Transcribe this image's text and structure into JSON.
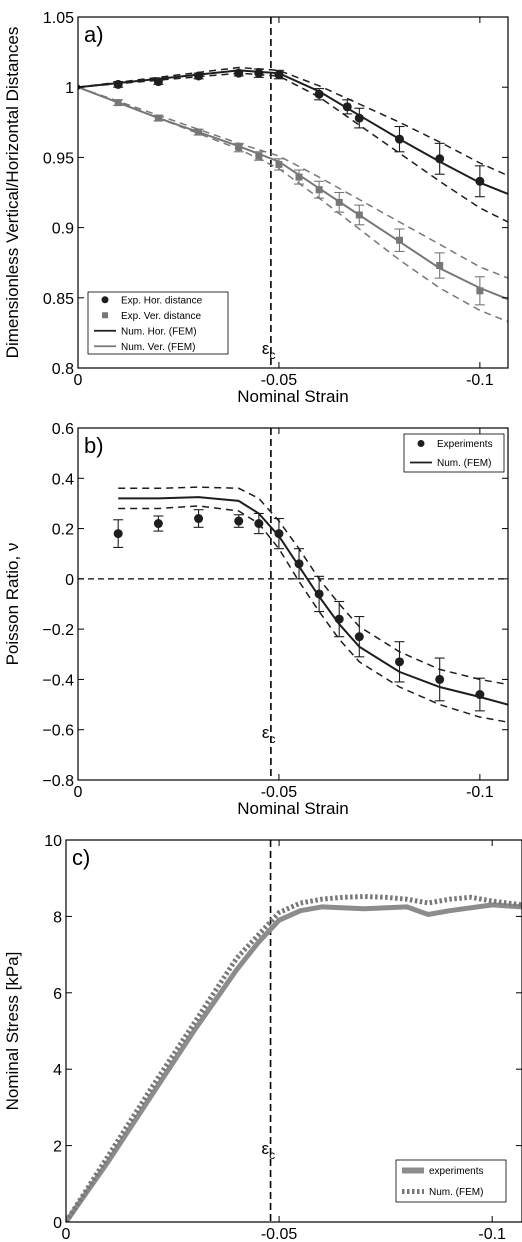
{
  "chart_data": [
    {
      "type": "line",
      "panel_label": "a)",
      "xlabel": "Nominal Strain",
      "ylabel": "Dimensionless Vertical/Horizontal Distances",
      "xlim": [
        0,
        -0.107
      ],
      "ylim": [
        0.8,
        1.05
      ],
      "xticks": [
        0,
        -0.05,
        -0.1
      ],
      "xtick_labels": [
        "0",
        "-0.05",
        "-0.1"
      ],
      "yticks": [
        0.8,
        0.85,
        0.9,
        0.95,
        1,
        1.05
      ],
      "ytick_labels": [
        "0.8",
        "0.85",
        "0.9",
        "0.95",
        "1",
        "1.05"
      ],
      "vline": {
        "x": -0.048,
        "label": "ε",
        "subscript": "c"
      },
      "legend_position": "lower-left",
      "series": [
        {
          "name": "Exp. Hor. distance",
          "kind": "markers",
          "marker": "circle",
          "color": "#1e1e1e",
          "x": [
            -0.01,
            -0.02,
            -0.03,
            -0.04,
            -0.045,
            -0.05,
            -0.06,
            -0.067,
            -0.07,
            -0.08,
            -0.09,
            -0.1
          ],
          "y": [
            1.002,
            1.004,
            1.008,
            1.01,
            1.01,
            1.009,
            0.995,
            0.986,
            0.978,
            0.963,
            0.949,
            0.933
          ],
          "err": [
            0.002,
            0.002,
            0.002,
            0.002,
            0.003,
            0.003,
            0.004,
            0.005,
            0.007,
            0.009,
            0.011,
            0.011
          ]
        },
        {
          "name": "Exp. Ver. distance",
          "kind": "markers",
          "marker": "square",
          "color": "#777777",
          "x": [
            -0.01,
            -0.02,
            -0.03,
            -0.04,
            -0.045,
            -0.05,
            -0.055,
            -0.06,
            -0.065,
            -0.07,
            -0.08,
            -0.09,
            -0.1
          ],
          "y": [
            0.989,
            0.978,
            0.968,
            0.957,
            0.951,
            0.945,
            0.936,
            0.927,
            0.918,
            0.909,
            0.891,
            0.873,
            0.855
          ],
          "err": [
            0.002,
            0.002,
            0.002,
            0.003,
            0.003,
            0.004,
            0.005,
            0.006,
            0.007,
            0.007,
            0.008,
            0.009,
            0.01
          ]
        },
        {
          "name": "Num. Hor. (FEM)",
          "kind": "line",
          "color": "#1e1e1e",
          "x": [
            0,
            -0.04,
            -0.05,
            -0.06,
            -0.07,
            -0.08,
            -0.09,
            -0.1,
            -0.107
          ],
          "y": [
            1.0,
            1.012,
            1.01,
            0.997,
            0.98,
            0.963,
            0.947,
            0.932,
            0.924
          ]
        },
        {
          "name": "Num. Hor. (FEM) upper bound",
          "kind": "dashed",
          "color": "#1e1e1e",
          "x": [
            0,
            -0.04,
            -0.05,
            -0.06,
            -0.07,
            -0.08,
            -0.09,
            -0.1,
            -0.107
          ],
          "y": [
            1.0,
            1.014,
            1.012,
            1.001,
            0.988,
            0.975,
            0.961,
            0.946,
            0.937
          ]
        },
        {
          "name": "Num. Hor. (FEM) lower bound",
          "kind": "dashed",
          "color": "#1e1e1e",
          "x": [
            0,
            -0.04,
            -0.05,
            -0.06,
            -0.07,
            -0.08,
            -0.09,
            -0.1,
            -0.107
          ],
          "y": [
            1.0,
            1.01,
            1.008,
            0.993,
            0.973,
            0.953,
            0.933,
            0.914,
            0.904
          ]
        },
        {
          "name": "Num. Ver. (FEM)",
          "kind": "line",
          "color": "#777777",
          "x": [
            0,
            -0.01,
            -0.02,
            -0.03,
            -0.04,
            -0.05,
            -0.06,
            -0.07,
            -0.08,
            -0.09,
            -0.1,
            -0.107
          ],
          "y": [
            1.0,
            0.989,
            0.978,
            0.968,
            0.958,
            0.947,
            0.928,
            0.909,
            0.89,
            0.871,
            0.857,
            0.849
          ]
        },
        {
          "name": "Num. Ver. (FEM) upper bound",
          "kind": "dashed",
          "color": "#777777",
          "x": [
            0,
            -0.04,
            -0.05,
            -0.06,
            -0.07,
            -0.08,
            -0.09,
            -0.1,
            -0.107
          ],
          "y": [
            1.0,
            0.96,
            0.951,
            0.936,
            0.92,
            0.904,
            0.888,
            0.872,
            0.864
          ]
        },
        {
          "name": "Num. Ver. (FEM) lower bound",
          "kind": "dashed",
          "color": "#777777",
          "x": [
            0,
            -0.04,
            -0.05,
            -0.06,
            -0.07,
            -0.08,
            -0.09,
            -0.1,
            -0.107
          ],
          "y": [
            1.0,
            0.956,
            0.942,
            0.921,
            0.899,
            0.877,
            0.857,
            0.841,
            0.833
          ]
        }
      ],
      "legend": [
        "Exp. Hor. distance",
        "Exp. Ver. distance",
        "Num. Hor. (FEM)",
        "Num. Ver. (FEM)"
      ]
    },
    {
      "type": "line",
      "panel_label": "b)",
      "xlabel": "Nominal Strain",
      "ylabel": "Poisson Ratio, ν",
      "xlim": [
        0,
        -0.107
      ],
      "ylim": [
        -0.8,
        0.6
      ],
      "xticks": [
        0,
        -0.05,
        -0.1
      ],
      "xtick_labels": [
        "0",
        "-0.05",
        "-0.1"
      ],
      "yticks": [
        -0.8,
        -0.6,
        -0.4,
        -0.2,
        0,
        0.2,
        0.4,
        0.6
      ],
      "ytick_labels": [
        "−0.8",
        "−0.6",
        "−0.4",
        "−0.2",
        "0",
        "0.2",
        "0.4",
        "0.6"
      ],
      "hline": {
        "y": 0
      },
      "vline": {
        "x": -0.048,
        "label": "ε",
        "subscript": "c"
      },
      "legend_position": "top-right",
      "series": [
        {
          "name": "Experiments",
          "kind": "markers",
          "marker": "circle",
          "color": "#1e1e1e",
          "x": [
            -0.01,
            -0.02,
            -0.03,
            -0.04,
            -0.045,
            -0.05,
            -0.055,
            -0.06,
            -0.065,
            -0.07,
            -0.08,
            -0.09,
            -0.1
          ],
          "y": [
            0.18,
            0.22,
            0.24,
            0.23,
            0.22,
            0.18,
            0.06,
            -0.06,
            -0.16,
            -0.23,
            -0.33,
            -0.4,
            -0.46
          ],
          "err": [
            0.055,
            0.03,
            0.035,
            0.025,
            0.04,
            0.06,
            0.06,
            0.07,
            0.07,
            0.08,
            0.08,
            0.085,
            0.065
          ]
        },
        {
          "name": "Num. (FEM)",
          "kind": "line",
          "color": "#1e1e1e",
          "x": [
            -0.01,
            -0.02,
            -0.03,
            -0.04,
            -0.045,
            -0.05,
            -0.055,
            -0.06,
            -0.065,
            -0.07,
            -0.08,
            -0.09,
            -0.1,
            -0.107
          ],
          "y": [
            0.32,
            0.32,
            0.325,
            0.31,
            0.26,
            0.17,
            0.05,
            -0.07,
            -0.18,
            -0.27,
            -0.37,
            -0.43,
            -0.47,
            -0.5
          ]
        },
        {
          "name": "Num. (FEM) upper bound",
          "kind": "dashed",
          "color": "#1e1e1e",
          "x": [
            -0.01,
            -0.02,
            -0.03,
            -0.04,
            -0.045,
            -0.05,
            -0.055,
            -0.06,
            -0.065,
            -0.07,
            -0.08,
            -0.09,
            -0.1,
            -0.107
          ],
          "y": [
            0.36,
            0.36,
            0.365,
            0.36,
            0.32,
            0.23,
            0.12,
            0.0,
            -0.1,
            -0.19,
            -0.29,
            -0.36,
            -0.4,
            -0.42
          ]
        },
        {
          "name": "Num. (FEM) lower bound",
          "kind": "dashed",
          "color": "#1e1e1e",
          "x": [
            -0.01,
            -0.02,
            -0.03,
            -0.04,
            -0.045,
            -0.05,
            -0.055,
            -0.06,
            -0.065,
            -0.07,
            -0.08,
            -0.09,
            -0.1,
            -0.107
          ],
          "y": [
            0.28,
            0.28,
            0.29,
            0.27,
            0.22,
            0.12,
            -0.01,
            -0.13,
            -0.24,
            -0.33,
            -0.43,
            -0.5,
            -0.55,
            -0.57
          ]
        }
      ],
      "legend": [
        "Experiments",
        "Num. (FEM)"
      ]
    },
    {
      "type": "line",
      "panel_label": "c)",
      "xlabel": "Nominal Strain",
      "ylabel": "Nominal Stress [kPa]",
      "xlim": [
        0,
        -0.107
      ],
      "ylim": [
        0,
        10
      ],
      "xticks": [
        0,
        -0.05,
        -0.1
      ],
      "xtick_labels": [
        "0",
        "-0.05",
        "-0.1"
      ],
      "yticks": [
        0,
        2,
        4,
        6,
        8,
        10
      ],
      "ytick_labels": [
        "0",
        "2",
        "4",
        "6",
        "8",
        "10"
      ],
      "vline": {
        "x": -0.048,
        "label": "ε",
        "subscript": "c"
      },
      "legend_position": "bottom-right",
      "series": [
        {
          "name": "experiments",
          "kind": "thick",
          "color": "#8c8c8c",
          "x": [
            0,
            -0.01,
            -0.02,
            -0.03,
            -0.04,
            -0.045,
            -0.05,
            -0.055,
            -0.06,
            -0.07,
            -0.08,
            -0.085,
            -0.09,
            -0.1,
            -0.107
          ],
          "y": [
            0,
            1.6,
            3.3,
            5.0,
            6.6,
            7.3,
            7.9,
            8.15,
            8.25,
            8.2,
            8.25,
            8.05,
            8.15,
            8.3,
            8.25
          ]
        },
        {
          "name": "Num. (FEM)",
          "kind": "dotted",
          "color": "#777777",
          "x": [
            0,
            -0.01,
            -0.02,
            -0.03,
            -0.04,
            -0.045,
            -0.05,
            -0.055,
            -0.06,
            -0.065,
            -0.07,
            -0.075,
            -0.08,
            -0.085,
            -0.09,
            -0.095,
            -0.1,
            -0.107
          ],
          "y": [
            0,
            1.75,
            3.5,
            5.2,
            6.9,
            7.5,
            8.1,
            8.35,
            8.45,
            8.5,
            8.52,
            8.5,
            8.45,
            8.35,
            8.45,
            8.5,
            8.4,
            8.3
          ]
        }
      ],
      "legend": [
        "experiments",
        "Num. (FEM)"
      ]
    }
  ]
}
